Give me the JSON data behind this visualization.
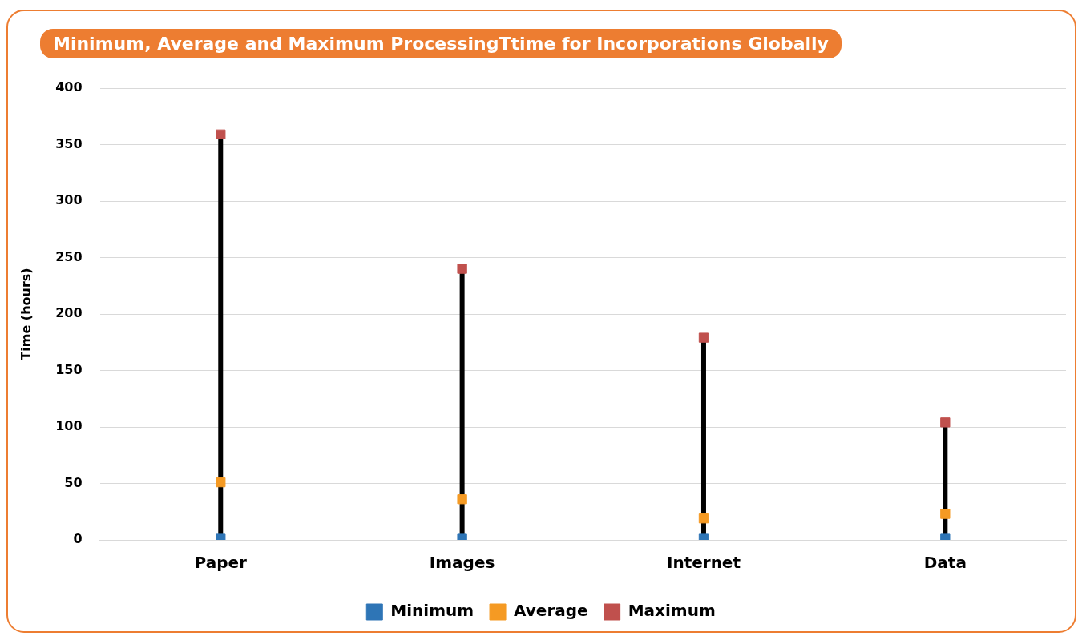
{
  "chart_data": {
    "type": "scatter",
    "title": "Minimum, Average and Maximum ProcessingTtime for Incorporations Globally",
    "ylabel": "Time (hours)",
    "categories": [
      "Paper",
      "Images",
      "Internet",
      "Data"
    ],
    "series": [
      {
        "name": "Minimum",
        "color": "#2e75b6",
        "marker": "square",
        "values": [
          1,
          1,
          1,
          1
        ]
      },
      {
        "name": "Average",
        "color": "#f59a23",
        "marker": "square",
        "values": [
          51,
          36,
          19,
          23
        ]
      },
      {
        "name": "Maximum",
        "color": "#c0504d",
        "marker": "square",
        "values": [
          359,
          240,
          179,
          104
        ]
      }
    ],
    "ylim": [
      0,
      400
    ],
    "yticks": [
      0,
      50,
      100,
      150,
      200,
      250,
      300,
      350,
      400
    ],
    "grid": "y",
    "legend": "bottom"
  }
}
